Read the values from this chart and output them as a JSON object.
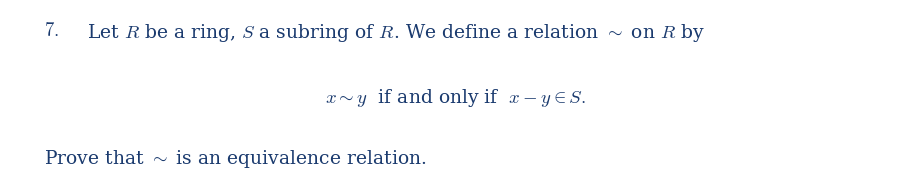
{
  "background_color": "#ffffff",
  "figsize": [
    9.12,
    1.81
  ],
  "dpi": 100,
  "text_color": "#1a3a6e",
  "fontsize": 13.5,
  "math_fontsize": 13.5
}
